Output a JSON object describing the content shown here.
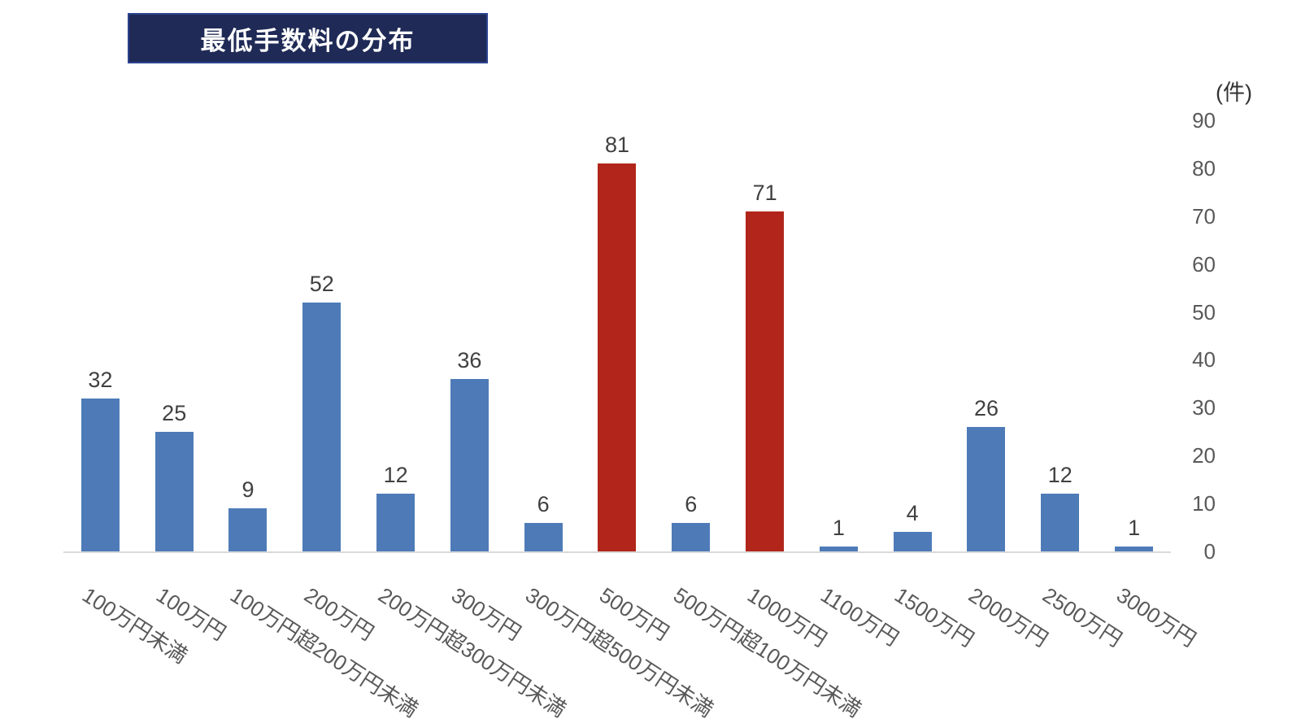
{
  "chart_data": {
    "type": "bar",
    "title": "最低手数料の分布",
    "unit_label": "(件)",
    "categories": [
      "100万円未満",
      "100万円",
      "100万円超200万円未満",
      "200万円",
      "200万円超300万円未満",
      "300万円",
      "300万円超500万円未満",
      "500万円",
      "500万円超100万円未満",
      "1000万円",
      "1100万円",
      "1500万円",
      "2000万円",
      "2500万円",
      "3000万円"
    ],
    "values": [
      32,
      25,
      9,
      52,
      12,
      36,
      6,
      81,
      6,
      71,
      1,
      4,
      26,
      12,
      1
    ],
    "highlighted_indices": [
      7,
      9
    ],
    "colors": {
      "bar_default": "#4e7bb8",
      "bar_highlight": "#b1251a",
      "title_background": "#1f2a56",
      "title_border": "#2c4390",
      "title_text": "#ffffff",
      "axis_line": "#d9d9d9",
      "value_label_text": "#404040",
      "tick_text": "#595959"
    },
    "ylim": [
      0,
      90
    ],
    "yticks": [
      0,
      10,
      20,
      30,
      40,
      50,
      60,
      70,
      80,
      90
    ],
    "grid": "off",
    "legend": "none",
    "value_labels": "shown above bars",
    "y_axis_position": "right",
    "x_label_rotation_deg": 33
  }
}
